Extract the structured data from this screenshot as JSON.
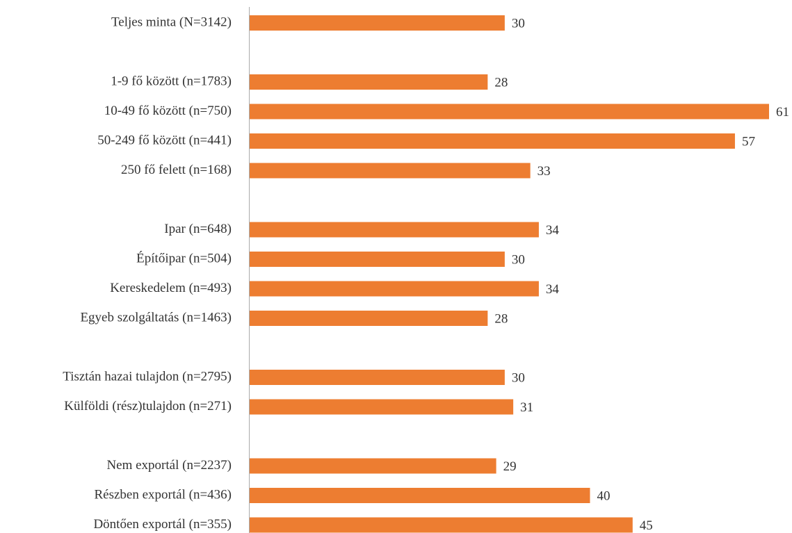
{
  "chart_data": {
    "type": "barh",
    "categories": [
      "Teljes minta (N=3142)",
      null,
      "1-9 fő között (n=1783)",
      "10-49 fő között (n=750)",
      "50-249 fő között (n=441)",
      "250 fő felett (n=168)",
      null,
      "Ipar (n=648)",
      "Építőipar (n=504)",
      "Kereskedelem (n=493)",
      "Egyeb szolgáltatás (n=1463)",
      null,
      "Tisztán hazai tulajdon (n=2795)",
      "Külföldi (rész)tulajdon (n=271)",
      null,
      "Nem exportál (n=2237)",
      "Részben exportál (n=436)",
      "Döntően exportál (n=355)"
    ],
    "values": [
      30,
      null,
      28,
      61,
      57,
      33,
      null,
      34,
      30,
      34,
      28,
      null,
      30,
      31,
      null,
      29,
      40,
      45
    ],
    "color": "#ed7d31"
  }
}
